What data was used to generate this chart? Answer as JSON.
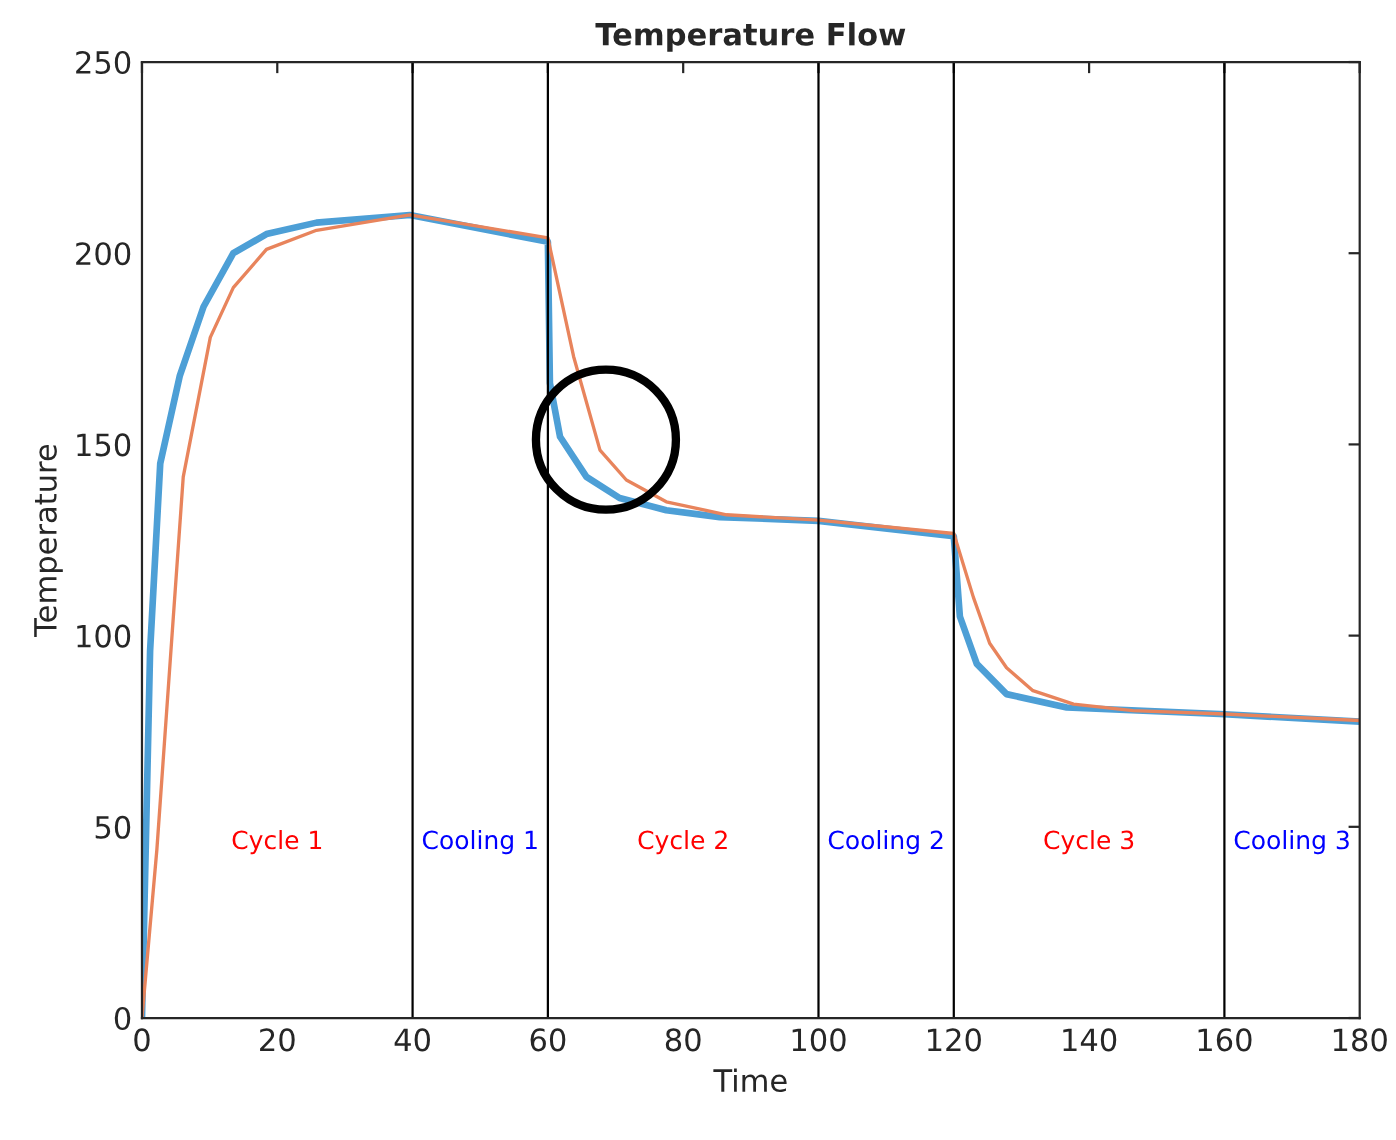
{
  "chart_data": {
    "type": "line",
    "title": "Temperature Flow",
    "xlabel": "Time",
    "ylabel": "Temperature",
    "xlim": [
      0,
      180
    ],
    "xticks": [
      0,
      20,
      40,
      60,
      80,
      100,
      120,
      140,
      160,
      180
    ],
    "ylim": [
      0,
      250
    ],
    "yticks": [
      0,
      50,
      100,
      150,
      200,
      250
    ],
    "grid": false,
    "legend": false,
    "series": [
      {
        "color": "#4d9fd6",
        "x": [
          0,
          1.2,
          2.7,
          5.6,
          9.1,
          13.5,
          18.4,
          25.8,
          39.6,
          60,
          60.3,
          61.8,
          65.7,
          70.6,
          77.5,
          85.4,
          100,
          120,
          120.9,
          123.4,
          127.8,
          136.7,
          159.3,
          180
        ],
        "values": [
          0,
          96,
          145,
          168,
          186,
          200,
          205,
          208,
          210,
          203,
          166,
          152,
          141.5,
          136,
          132.8,
          131,
          130,
          126,
          105,
          92.6,
          84.7,
          81.2,
          79.5,
          77.5
        ]
      },
      {
        "color": "#e8845c",
        "x": [
          0,
          2.2,
          6.1,
          10.1,
          13.5,
          18.4,
          25.8,
          39.6,
          60,
          63.8,
          67.7,
          71.6,
          77.5,
          86.4,
          100,
          120,
          122.9,
          125.3,
          127.8,
          131.7,
          137.7,
          146.5,
          160,
          180
        ],
        "values": [
          0,
          44,
          141.5,
          178,
          191,
          201,
          206,
          210,
          204,
          173,
          148.5,
          140.7,
          135,
          131.6,
          130.2,
          126.7,
          110,
          98,
          91.6,
          85.6,
          82.1,
          80.4,
          79.5,
          77.8
        ]
      }
    ],
    "ref_lines": [
      {
        "axis": "x",
        "value": 40,
        "color": "#000000"
      },
      {
        "axis": "x",
        "value": 60,
        "color": "#000000"
      },
      {
        "axis": "x",
        "value": 100,
        "color": "#000000"
      },
      {
        "axis": "x",
        "value": 120,
        "color": "#000000"
      },
      {
        "axis": "x",
        "value": 160,
        "color": "#000000"
      }
    ],
    "annotations": [
      "Cycle 1",
      "Cooling 1",
      "Cycle 2",
      "Cooling 2",
      "Cycle 3",
      "Cooling 3"
    ]
  }
}
